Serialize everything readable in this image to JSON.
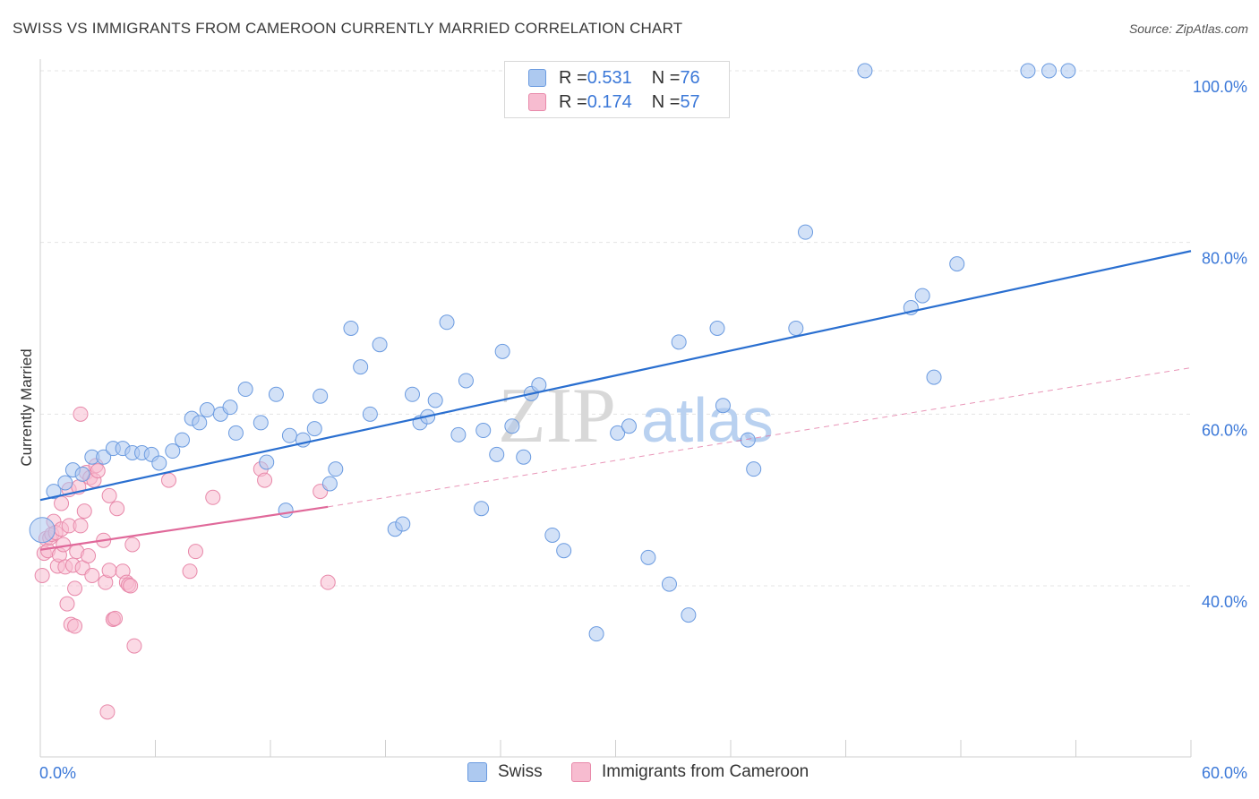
{
  "title": "SWISS VS IMMIGRANTS FROM CAMEROON CURRENTLY MARRIED CORRELATION CHART",
  "source": "Source: ZipAtlas.com",
  "watermark": {
    "part1": "ZIP",
    "part2": "atlas"
  },
  "legend": {
    "rows": [
      {
        "r_label": "R = ",
        "r_value": "0.531",
        "n_label": "N = ",
        "n_value": "76"
      },
      {
        "r_label": "R = ",
        "r_value": "0.174",
        "n_label": "N = ",
        "n_value": "57"
      }
    ]
  },
  "bottom_legend": {
    "swiss": "Swiss",
    "cameroon": "Immigrants from Cameroon"
  },
  "colors": {
    "swiss_fill": "#adc9f0",
    "swiss_stroke": "#6b9be0",
    "swiss_line": "#2a6fd0",
    "cam_fill": "#f7bcd0",
    "cam_stroke": "#e889aa",
    "cam_line": "#e0699a",
    "tick_label": "#3b78d8",
    "grid": "#e4e4e4"
  },
  "chart_data": {
    "type": "scatter",
    "title": "SWISS VS IMMIGRANTS FROM CAMEROON CURRENTLY MARRIED CORRELATION CHART",
    "xlabel": "",
    "ylabel": "Currently Married",
    "xlim": [
      0,
      60
    ],
    "ylim": [
      20,
      102
    ],
    "x_tick_labels": [
      "0.0%",
      "60.0%"
    ],
    "y_ticks": [
      40,
      60,
      80,
      100
    ],
    "y_tick_labels": [
      "40.0%",
      "60.0%",
      "80.0%",
      "100.0%"
    ],
    "grid": true,
    "legend_position": "top-center",
    "series": [
      {
        "name": "Swiss",
        "r": 0.531,
        "n": 76,
        "trend": {
          "x": [
            0,
            60
          ],
          "y": [
            50.0,
            79.0
          ],
          "style": "solid"
        },
        "points": [
          [
            0.1,
            46.5
          ],
          [
            0.7,
            51.0
          ],
          [
            1.3,
            52.0
          ],
          [
            1.7,
            53.5
          ],
          [
            2.2,
            53.0
          ],
          [
            2.7,
            55.0
          ],
          [
            3.3,
            55.0
          ],
          [
            3.8,
            56.0
          ],
          [
            4.3,
            56.0
          ],
          [
            4.8,
            55.5
          ],
          [
            5.3,
            55.5
          ],
          [
            5.8,
            55.3
          ],
          [
            6.2,
            54.3
          ],
          [
            6.9,
            55.7
          ],
          [
            7.4,
            57.0
          ],
          [
            7.9,
            59.5
          ],
          [
            8.3,
            59.0
          ],
          [
            8.7,
            60.5
          ],
          [
            9.4,
            60.0
          ],
          [
            9.9,
            60.8
          ],
          [
            10.2,
            57.8
          ],
          [
            10.7,
            62.9
          ],
          [
            11.5,
            59.0
          ],
          [
            11.8,
            54.4
          ],
          [
            12.3,
            62.3
          ],
          [
            12.8,
            48.8
          ],
          [
            13.0,
            57.5
          ],
          [
            13.7,
            57.0
          ],
          [
            14.3,
            58.3
          ],
          [
            14.6,
            62.1
          ],
          [
            15.1,
            51.9
          ],
          [
            15.4,
            53.6
          ],
          [
            16.2,
            70.0
          ],
          [
            16.7,
            65.5
          ],
          [
            17.2,
            60.0
          ],
          [
            17.7,
            68.1
          ],
          [
            18.5,
            46.6
          ],
          [
            18.9,
            47.2
          ],
          [
            19.4,
            62.3
          ],
          [
            19.8,
            59.0
          ],
          [
            20.2,
            59.7
          ],
          [
            20.6,
            61.6
          ],
          [
            21.2,
            70.7
          ],
          [
            21.8,
            57.6
          ],
          [
            22.2,
            63.9
          ],
          [
            23.0,
            49.0
          ],
          [
            23.1,
            58.1
          ],
          [
            23.8,
            55.3
          ],
          [
            24.1,
            67.3
          ],
          [
            24.6,
            58.6
          ],
          [
            25.2,
            55.0
          ],
          [
            25.6,
            62.4
          ],
          [
            26.0,
            63.4
          ],
          [
            26.7,
            45.9
          ],
          [
            27.3,
            44.1
          ],
          [
            29.0,
            34.4
          ],
          [
            30.1,
            57.8
          ],
          [
            30.7,
            58.6
          ],
          [
            31.7,
            43.3
          ],
          [
            32.8,
            40.2
          ],
          [
            33.3,
            68.4
          ],
          [
            33.8,
            36.6
          ],
          [
            35.3,
            70.0
          ],
          [
            35.6,
            61.0
          ],
          [
            36.9,
            57.0
          ],
          [
            37.2,
            53.6
          ],
          [
            39.4,
            70.0
          ],
          [
            39.9,
            81.2
          ],
          [
            43.0,
            100.0
          ],
          [
            45.4,
            72.4
          ],
          [
            46.0,
            73.8
          ],
          [
            46.6,
            64.3
          ],
          [
            47.8,
            77.5
          ],
          [
            51.5,
            100.0
          ],
          [
            52.6,
            100.0
          ],
          [
            53.6,
            100.0
          ]
        ]
      },
      {
        "name": "Immigrants from Cameroon",
        "r": 0.174,
        "n": 57,
        "trend": {
          "x": [
            0,
            15.0
          ],
          "y": [
            44.2,
            49.2
          ],
          "x_dashed_end": 60,
          "y_dashed_end": 65.4,
          "style": "solid-then-dashed"
        },
        "points": [
          [
            0.1,
            41.2
          ],
          [
            0.2,
            43.8
          ],
          [
            0.3,
            45.5
          ],
          [
            0.4,
            44.1
          ],
          [
            0.5,
            45.6
          ],
          [
            0.6,
            46.0
          ],
          [
            0.7,
            47.5
          ],
          [
            0.8,
            46.2
          ],
          [
            0.9,
            42.3
          ],
          [
            1.0,
            43.6
          ],
          [
            1.1,
            46.6
          ],
          [
            1.1,
            49.6
          ],
          [
            1.2,
            44.8
          ],
          [
            1.3,
            42.2
          ],
          [
            1.4,
            37.9
          ],
          [
            1.5,
            47.0
          ],
          [
            1.5,
            51.2
          ],
          [
            1.6,
            35.5
          ],
          [
            1.7,
            42.4
          ],
          [
            1.8,
            39.7
          ],
          [
            1.8,
            35.3
          ],
          [
            1.9,
            44.0
          ],
          [
            2.0,
            51.5
          ],
          [
            2.1,
            60.0
          ],
          [
            2.1,
            47.0
          ],
          [
            2.2,
            42.1
          ],
          [
            2.3,
            48.7
          ],
          [
            2.4,
            53.2
          ],
          [
            2.5,
            43.5
          ],
          [
            2.6,
            52.6
          ],
          [
            2.7,
            41.2
          ],
          [
            2.8,
            52.3
          ],
          [
            2.9,
            54.0
          ],
          [
            3.0,
            53.4
          ],
          [
            3.3,
            45.3
          ],
          [
            3.4,
            40.4
          ],
          [
            3.5,
            25.3
          ],
          [
            3.6,
            41.8
          ],
          [
            3.6,
            50.5
          ],
          [
            3.8,
            36.1
          ],
          [
            3.8,
            36.1
          ],
          [
            3.9,
            36.2
          ],
          [
            4.0,
            49.0
          ],
          [
            4.3,
            41.7
          ],
          [
            4.5,
            40.4
          ],
          [
            4.6,
            40.1
          ],
          [
            4.7,
            40.0
          ],
          [
            4.8,
            44.8
          ],
          [
            4.9,
            33.0
          ],
          [
            6.7,
            52.3
          ],
          [
            7.8,
            41.7
          ],
          [
            8.1,
            44.0
          ],
          [
            9.0,
            50.3
          ],
          [
            11.5,
            53.6
          ],
          [
            11.7,
            52.3
          ],
          [
            14.6,
            51.0
          ],
          [
            15.0,
            40.4
          ]
        ]
      }
    ]
  }
}
